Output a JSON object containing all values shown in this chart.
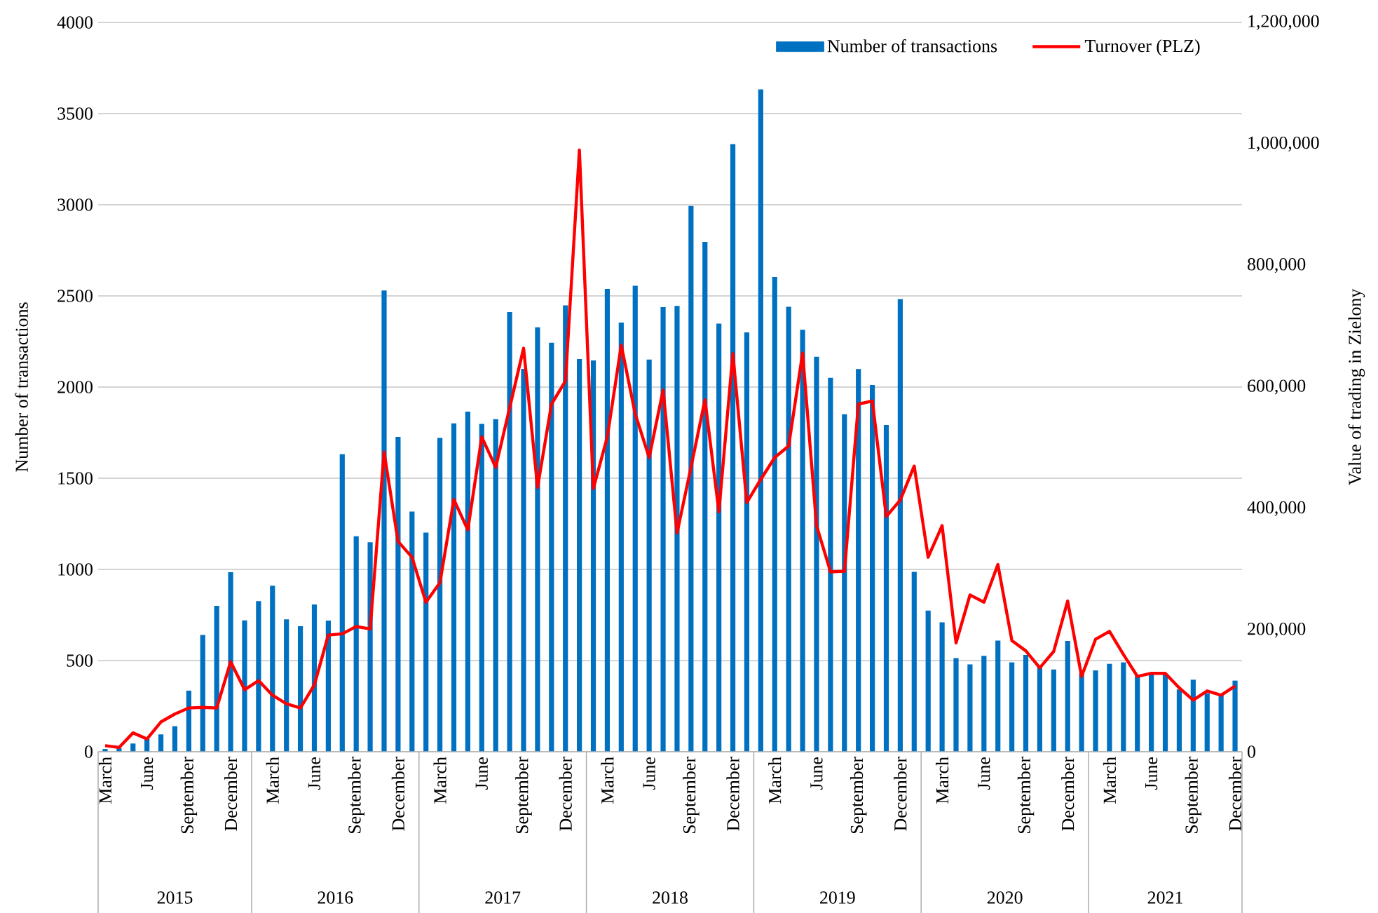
{
  "chart_data": {
    "type": "bar",
    "categories": [
      "March",
      null,
      null,
      "June",
      null,
      null,
      "September",
      null,
      null,
      "December",
      null,
      null,
      "March",
      null,
      null,
      "June",
      null,
      null,
      "September",
      null,
      null,
      "December",
      null,
      null,
      "March",
      null,
      null,
      "June",
      null,
      null,
      "September",
      null,
      null,
      "December",
      null,
      null,
      "March",
      null,
      null,
      "June",
      null,
      null,
      "September",
      null,
      null,
      "December",
      null,
      null,
      "March",
      null,
      null,
      "June",
      null,
      null,
      "September",
      null,
      null,
      "December",
      null,
      null,
      "March",
      null,
      null,
      "June",
      null,
      null,
      "September",
      null,
      null,
      "December",
      null,
      null,
      "March",
      null,
      null,
      "June",
      null,
      null,
      "September",
      null,
      null,
      "December"
    ],
    "series": [
      {
        "name": "Number of transactions",
        "color": "#0070c0",
        "values": [
          15,
          20,
          45,
          70,
          95,
          140,
          335,
          640,
          800,
          985,
          720,
          826,
          911,
          726,
          688,
          808,
          719,
          1632,
          1182,
          1149,
          2530,
          1727,
          1317,
          1202,
          1721,
          1801,
          1865,
          1798,
          1824,
          2412,
          2100,
          2328,
          2243,
          2448,
          2154,
          2146,
          2538,
          2354,
          2556,
          2151,
          2438,
          2445,
          2993,
          2796,
          2348,
          3333,
          2300,
          3633,
          2604,
          2440,
          2314,
          2166,
          2051,
          1851,
          2099,
          2012,
          1792,
          2483,
          987,
          774,
          710,
          513,
          479,
          526,
          610,
          490,
          531,
          474,
          451,
          608,
          430,
          446,
          482,
          490,
          423,
          431,
          423,
          341,
          395,
          321,
          315,
          390
        ]
      },
      {
        "name": "Turnover (PLZ)",
        "type": "line",
        "axis": "y2",
        "color": "#ff0000",
        "values": [
          10000,
          7000,
          31000,
          21000,
          49000,
          62000,
          72000,
          73000,
          72000,
          148000,
          102000,
          117000,
          93000,
          79000,
          72000,
          110000,
          192000,
          194000,
          206000,
          202000,
          493000,
          346000,
          320000,
          246000,
          278000,
          415000,
          365000,
          518000,
          468000,
          566000,
          664000,
          435000,
          572000,
          610000,
          990000,
          433000,
          518000,
          669000,
          556000,
          484000,
          595000,
          360000,
          468000,
          579000,
          395000,
          655000,
          410000,
          448000,
          484000,
          503000,
          656000,
          372000,
          296000,
          297000,
          572000,
          577000,
          387000,
          414000,
          470000,
          320000,
          372000,
          179000,
          258000,
          246000,
          308000,
          183000,
          166000,
          138000,
          165000,
          248000,
          124000,
          185000,
          198000,
          160000,
          124000,
          129000,
          129000,
          105000,
          85000,
          100000,
          93000,
          108000
        ]
      }
    ],
    "ylabel": "Number of transactions",
    "y2label": "Value of trading in Zielony",
    "ylim": [
      0,
      4000
    ],
    "yticks": [
      0,
      500,
      1000,
      1500,
      2000,
      2500,
      3000,
      3500,
      4000
    ],
    "y2lim": [
      0,
      1200000
    ],
    "y2ticks": [
      0,
      {
        "value": 200000,
        "label": "200,000"
      },
      {
        "value": 400000,
        "label": "400,000"
      },
      {
        "value": 600000,
        "label": "600,000"
      },
      {
        "value": 800000,
        "label": "800,000"
      },
      {
        "value": 1000000,
        "label": "1,000,000"
      },
      {
        "value": 1200000,
        "label": "1,200,000"
      }
    ],
    "annotations": [
      "2015",
      "2016",
      "2017",
      "2018",
      "2019",
      "2020",
      "2021"
    ],
    "grid": "y",
    "legend": "top right"
  }
}
